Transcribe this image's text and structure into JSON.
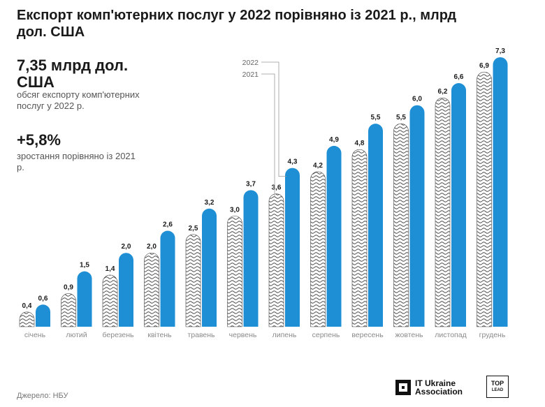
{
  "header": {
    "title": "Експорт комп'ютерних послуг у 2022 порівняно із 2021 р., млрд дол. США"
  },
  "kpis": [
    {
      "value": "7,35 млрд дол. США",
      "label": "обсяг експорту комп'ютерних послуг у 2022 р."
    },
    {
      "value": "+5,8%",
      "label": "зростання порівняно із 2021 р."
    }
  ],
  "source": "Джерело: НБУ",
  "logos": {
    "it_ukraine": "IT Ukraine Association",
    "top_lead_line1": "TOP",
    "top_lead_line2": "LEAD"
  },
  "colors": {
    "series_2021": "#ffffff",
    "series_2021_hatch": "#444444",
    "series_2022": "#1e8fd5"
  },
  "chart_data": {
    "type": "bar",
    "title": "Експорт комп'ютерних послуг у 2022 порівняно із 2021 р., млрд дол. США",
    "xlabel": "",
    "ylabel": "",
    "categories": [
      "січень",
      "лютий",
      "березень",
      "квітень",
      "травень",
      "червень",
      "липень",
      "серпень",
      "вересень",
      "жовтень",
      "листопад",
      "грудень"
    ],
    "series": [
      {
        "name": "2021",
        "values": [
          0.4,
          0.9,
          1.4,
          2.0,
          2.5,
          3.0,
          3.6,
          4.2,
          4.8,
          5.5,
          6.2,
          6.9
        ],
        "labels": [
          "0,4",
          "0,9",
          "1,4",
          "2,0",
          "2,5",
          "3,0",
          "3,6",
          "4,2",
          "4,8",
          "5,5",
          "6,2",
          "6,9"
        ],
        "style": "hatched"
      },
      {
        "name": "2022",
        "values": [
          0.6,
          1.5,
          2.0,
          2.6,
          3.2,
          3.7,
          4.3,
          4.9,
          5.5,
          6.0,
          6.6,
          7.3
        ],
        "labels": [
          "0,6",
          "1,5",
          "2,0",
          "2,6",
          "3,2",
          "3,7",
          "4,3",
          "4,9",
          "5,5",
          "6,0",
          "6,6",
          "7,3"
        ],
        "style": "solid"
      }
    ],
    "ylim": [
      0,
      7.3
    ],
    "grid": false,
    "legend": "callout over the July bars"
  }
}
